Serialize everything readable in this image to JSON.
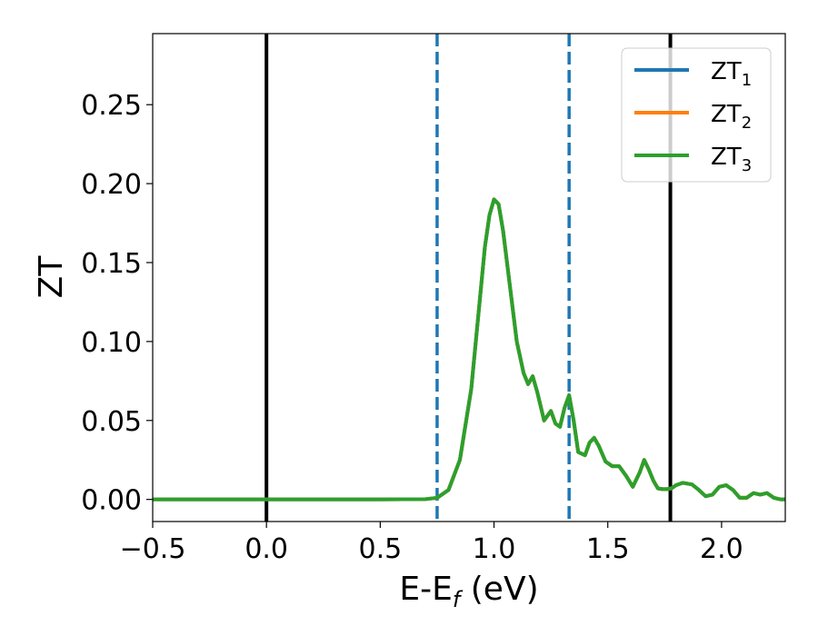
{
  "chart_data": {
    "type": "line",
    "title": "",
    "xlabel": "E-E",
    "xlabel_sub": "f",
    "xlabel_unit": " (eV)",
    "ylabel": "ZT",
    "xlim": [
      -0.5,
      2.28
    ],
    "ylim": [
      -0.014,
      0.295
    ],
    "x_ticks": [
      -0.5,
      0.0,
      0.5,
      1.0,
      1.5,
      2.0
    ],
    "x_tick_labels": [
      "−0.5",
      "0.0",
      "0.5",
      "1.0",
      "1.5",
      "2.0"
    ],
    "y_ticks": [
      0.0,
      0.05,
      0.1,
      0.15,
      0.2,
      0.25
    ],
    "y_tick_labels": [
      "0.00",
      "0.05",
      "0.10",
      "0.15",
      "0.20",
      "0.25"
    ],
    "grid": false,
    "legend_position": "top-right",
    "vertical_lines": [
      {
        "x": 0.0,
        "style": "solid",
        "color": "#000000"
      },
      {
        "x": 1.775,
        "style": "solid",
        "color": "#000000"
      },
      {
        "x": 0.75,
        "style": "dashed",
        "color": "#1f77b4"
      },
      {
        "x": 1.33,
        "style": "dashed",
        "color": "#1f77b4"
      }
    ],
    "series": [
      {
        "name": "ZT",
        "name_sub": "1",
        "color": "#1f77b4",
        "x": [
          -0.5,
          0.0,
          0.5,
          0.7,
          0.75,
          0.8,
          0.85,
          0.9,
          0.93,
          0.96,
          0.98,
          1.0,
          1.02,
          1.04,
          1.07,
          1.1,
          1.13,
          1.15,
          1.17,
          1.19,
          1.22,
          1.25,
          1.27,
          1.29,
          1.31,
          1.33,
          1.35,
          1.37,
          1.4,
          1.42,
          1.44,
          1.46,
          1.49,
          1.52,
          1.55,
          1.58,
          1.61,
          1.64,
          1.66,
          1.68,
          1.7,
          1.72,
          1.74,
          1.76,
          1.78,
          1.8,
          1.83,
          1.85,
          1.87,
          1.9,
          1.93,
          1.96,
          1.99,
          2.02,
          2.05,
          2.08,
          2.11,
          2.14,
          2.17,
          2.2,
          2.23,
          2.26,
          2.28
        ],
        "y": [
          0,
          0,
          0,
          0.0002,
          0.001,
          0.006,
          0.025,
          0.07,
          0.115,
          0.16,
          0.18,
          0.19,
          0.187,
          0.17,
          0.135,
          0.1,
          0.08,
          0.073,
          0.078,
          0.068,
          0.05,
          0.056,
          0.048,
          0.046,
          0.058,
          0.066,
          0.05,
          0.03,
          0.028,
          0.036,
          0.039,
          0.034,
          0.024,
          0.021,
          0.021,
          0.015,
          0.008,
          0.017,
          0.025,
          0.019,
          0.012,
          0.007,
          0.0065,
          0.0065,
          0.007,
          0.009,
          0.0105,
          0.01,
          0.0095,
          0.006,
          0.002,
          0.003,
          0.008,
          0.009,
          0.006,
          0.001,
          0.001,
          0.004,
          0.003,
          0.004,
          0.001,
          0.0,
          0.0
        ]
      },
      {
        "name": "ZT",
        "name_sub": "2",
        "color": "#ff7f0e",
        "x": [
          -0.5,
          0.0,
          0.5,
          0.7,
          0.75,
          0.8,
          0.85,
          0.9,
          0.93,
          0.96,
          0.98,
          1.0,
          1.02,
          1.04,
          1.07,
          1.1,
          1.13,
          1.15,
          1.17,
          1.19,
          1.22,
          1.25,
          1.27,
          1.29,
          1.31,
          1.33,
          1.35,
          1.37,
          1.4,
          1.42,
          1.44,
          1.46,
          1.49,
          1.52,
          1.55,
          1.58,
          1.61,
          1.64,
          1.66,
          1.68,
          1.7,
          1.72,
          1.74,
          1.76,
          1.78,
          1.8,
          1.83,
          1.85,
          1.87,
          1.9,
          1.93,
          1.96,
          1.99,
          2.02,
          2.05,
          2.08,
          2.11,
          2.14,
          2.17,
          2.2,
          2.23,
          2.26,
          2.28
        ],
        "y": [
          0,
          0,
          0,
          0.0002,
          0.001,
          0.006,
          0.025,
          0.07,
          0.115,
          0.16,
          0.18,
          0.19,
          0.187,
          0.17,
          0.135,
          0.1,
          0.08,
          0.073,
          0.078,
          0.068,
          0.05,
          0.056,
          0.048,
          0.046,
          0.058,
          0.066,
          0.05,
          0.03,
          0.028,
          0.036,
          0.039,
          0.034,
          0.024,
          0.021,
          0.021,
          0.015,
          0.008,
          0.017,
          0.025,
          0.019,
          0.012,
          0.007,
          0.0065,
          0.0065,
          0.007,
          0.009,
          0.0105,
          0.01,
          0.0095,
          0.006,
          0.002,
          0.003,
          0.008,
          0.009,
          0.006,
          0.001,
          0.001,
          0.004,
          0.003,
          0.004,
          0.001,
          0.0,
          0.0
        ]
      },
      {
        "name": "ZT",
        "name_sub": "3",
        "color": "#2ca02c",
        "x": [
          -0.5,
          0.0,
          0.5,
          0.7,
          0.75,
          0.8,
          0.85,
          0.9,
          0.93,
          0.96,
          0.98,
          1.0,
          1.02,
          1.04,
          1.07,
          1.1,
          1.13,
          1.15,
          1.17,
          1.19,
          1.22,
          1.25,
          1.27,
          1.29,
          1.31,
          1.33,
          1.35,
          1.37,
          1.4,
          1.42,
          1.44,
          1.46,
          1.49,
          1.52,
          1.55,
          1.58,
          1.61,
          1.64,
          1.66,
          1.68,
          1.7,
          1.72,
          1.74,
          1.76,
          1.78,
          1.8,
          1.83,
          1.85,
          1.87,
          1.9,
          1.93,
          1.96,
          1.99,
          2.02,
          2.05,
          2.08,
          2.11,
          2.14,
          2.17,
          2.2,
          2.23,
          2.26,
          2.28
        ],
        "y": [
          0,
          0,
          0,
          0.0002,
          0.001,
          0.006,
          0.025,
          0.07,
          0.115,
          0.16,
          0.18,
          0.19,
          0.187,
          0.17,
          0.135,
          0.1,
          0.08,
          0.073,
          0.078,
          0.068,
          0.05,
          0.056,
          0.048,
          0.046,
          0.058,
          0.066,
          0.05,
          0.03,
          0.028,
          0.036,
          0.039,
          0.034,
          0.024,
          0.021,
          0.021,
          0.015,
          0.008,
          0.017,
          0.025,
          0.019,
          0.012,
          0.007,
          0.0065,
          0.0065,
          0.007,
          0.009,
          0.0105,
          0.01,
          0.0095,
          0.006,
          0.002,
          0.003,
          0.008,
          0.009,
          0.006,
          0.001,
          0.001,
          0.004,
          0.003,
          0.004,
          0.001,
          0.0,
          0.0
        ]
      }
    ]
  }
}
